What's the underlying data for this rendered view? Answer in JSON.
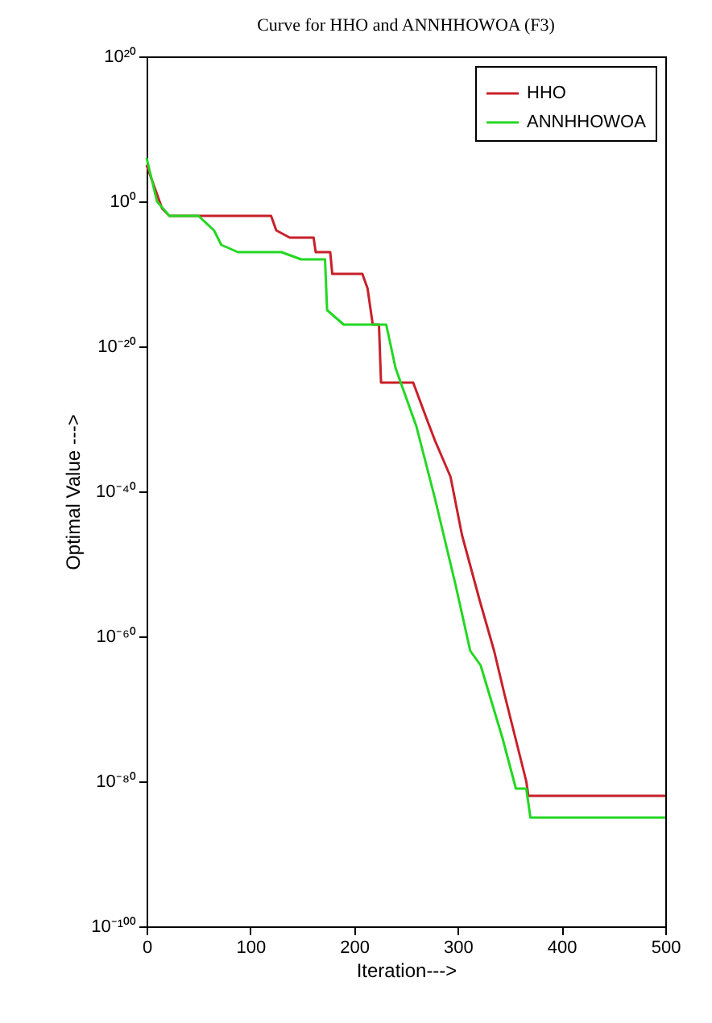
{
  "chart_data": {
    "type": "line",
    "title": "Curve for HHO and ANNHHOWOA (F3)",
    "xlabel": "Iteration--->",
    "ylabel": "Optimal Value --->",
    "log": "y",
    "xlim": [
      0,
      500
    ],
    "xticks": [
      0,
      100,
      200,
      300,
      400,
      500
    ],
    "ylim": [
      1e-100,
      1e+20
    ],
    "yticks": [
      {
        "value": 1e-100,
        "label": "10⁻¹⁰⁰"
      },
      {
        "value": 1e-80,
        "label": "10⁻⁸⁰"
      },
      {
        "value": 1e-60,
        "label": "10⁻⁶⁰"
      },
      {
        "value": 1e-40,
        "label": "10⁻⁴⁰"
      },
      {
        "value": 1e-20,
        "label": "10⁻²⁰"
      },
      {
        "value": 1,
        "label": "10⁰"
      },
      {
        "value": 1e+20,
        "label": "10²⁰"
      }
    ],
    "grid": false,
    "legend": "top right",
    "line_style": "solid",
    "series": [
      {
        "name": "HHO",
        "color": "#c8202a",
        "x": [
          0,
          5,
          10,
          15,
          22,
          120,
          125,
          138,
          161,
          163,
          177,
          179,
          208,
          213,
          218,
          224,
          226,
          257,
          270,
          278,
          293,
          304,
          321,
          335,
          345,
          352,
          366,
          368,
          500
        ],
        "values": [
          100000.0,
          1000.0,
          10.0,
          0.1,
          0.01,
          0.01,
          0.0001,
          1e-05,
          1e-05,
          1e-07,
          1e-07,
          1e-10,
          1e-10,
          1e-12,
          1e-17,
          1e-17,
          1e-25,
          1e-25,
          1e-30,
          1e-33,
          1e-38,
          1e-46,
          1e-55,
          1e-62,
          1e-68,
          1e-72,
          1e-80,
          1e-82,
          1e-82
        ]
      },
      {
        "name": "ANNHHOWOA",
        "color": "#22d822",
        "x": [
          0,
          5,
          10,
          22,
          50,
          65,
          72,
          88,
          130,
          149,
          172,
          174,
          190,
          231,
          240,
          260,
          278,
          298,
          312,
          322,
          343,
          356,
          366,
          370,
          500
        ],
        "values": [
          1000000.0,
          1000.0,
          1,
          0.01,
          0.01,
          0.0001,
          1e-06,
          1e-07,
          1e-07,
          1e-08,
          1e-08,
          1e-15,
          1e-17,
          1e-17,
          1e-23,
          1e-31,
          1e-41,
          1e-53,
          1e-62,
          1e-64,
          1e-74,
          1e-81,
          1e-81,
          1e-85,
          1e-85
        ]
      }
    ]
  }
}
